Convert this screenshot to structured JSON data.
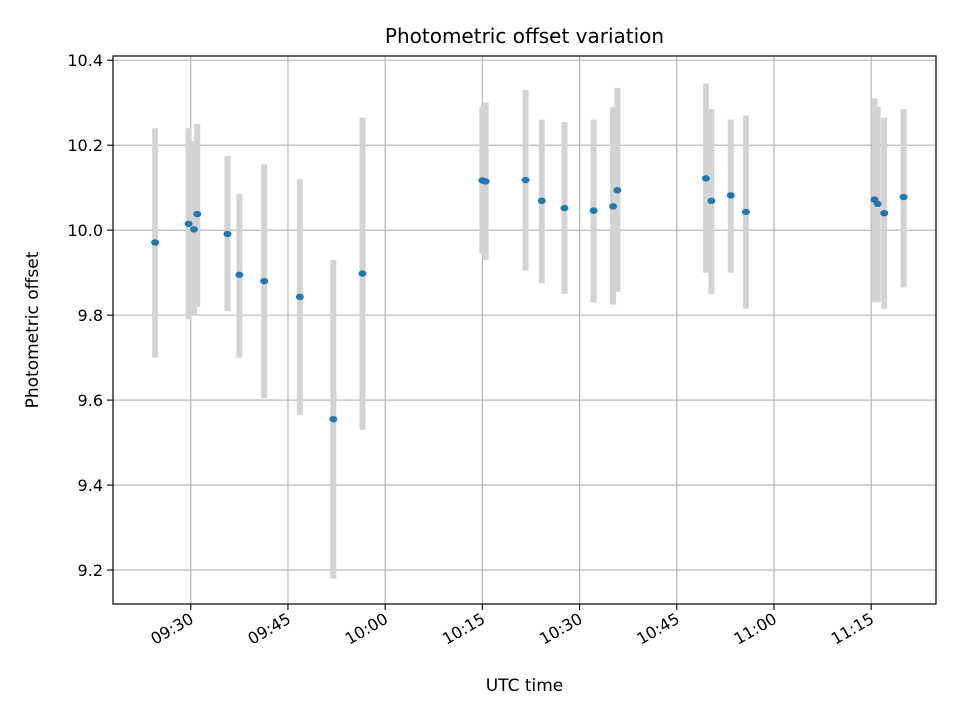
{
  "chart_data": {
    "type": "scatter",
    "title": "Photometric offset variation",
    "xlabel": "UTC time",
    "ylabel": "Photometric offset",
    "xlim": [
      "09:18",
      "11:25"
    ],
    "ylim": [
      9.12,
      10.41
    ],
    "x_ticks": [
      "09:30",
      "09:45",
      "10:00",
      "10:15",
      "10:30",
      "10:45",
      "11:00",
      "11:15"
    ],
    "y_ticks": [
      "9.2",
      "9.4",
      "9.6",
      "9.8",
      "10.0",
      "10.2",
      "10.4"
    ],
    "grid": true,
    "point_color": "#1f77b4",
    "errorbar_color": "#d3d3d3",
    "points": [
      {
        "t": "09:24:30",
        "y": 9.971,
        "lo": 9.7,
        "hi": 10.24
      },
      {
        "t": "09:29:40",
        "y": 10.015,
        "lo": 9.79,
        "hi": 10.24
      },
      {
        "t": "09:30:30",
        "y": 10.002,
        "lo": 9.8,
        "hi": 10.21
      },
      {
        "t": "09:31:00",
        "y": 10.038,
        "lo": 9.82,
        "hi": 10.25
      },
      {
        "t": "09:35:40",
        "y": 9.991,
        "lo": 9.81,
        "hi": 10.175
      },
      {
        "t": "09:37:30",
        "y": 9.895,
        "lo": 9.7,
        "hi": 10.085
      },
      {
        "t": "09:41:20",
        "y": 9.88,
        "lo": 9.605,
        "hi": 10.155
      },
      {
        "t": "09:46:50",
        "y": 9.843,
        "lo": 9.565,
        "hi": 10.12
      },
      {
        "t": "09:52:00",
        "y": 9.555,
        "lo": 9.18,
        "hi": 9.93
      },
      {
        "t": "09:56:30",
        "y": 9.898,
        "lo": 9.53,
        "hi": 10.265
      },
      {
        "t": "10:15:00",
        "y": 10.117,
        "lo": 9.945,
        "hi": 10.29
      },
      {
        "t": "10:15:30",
        "y": 10.115,
        "lo": 9.93,
        "hi": 10.3
      },
      {
        "t": "10:21:40",
        "y": 10.118,
        "lo": 9.905,
        "hi": 10.33
      },
      {
        "t": "10:24:10",
        "y": 10.069,
        "lo": 9.875,
        "hi": 10.26
      },
      {
        "t": "10:27:40",
        "y": 10.052,
        "lo": 9.85,
        "hi": 10.255
      },
      {
        "t": "10:32:10",
        "y": 10.046,
        "lo": 9.83,
        "hi": 10.26
      },
      {
        "t": "10:35:10",
        "y": 10.056,
        "lo": 9.825,
        "hi": 10.29
      },
      {
        "t": "10:35:50",
        "y": 10.094,
        "lo": 9.855,
        "hi": 10.335
      },
      {
        "t": "10:49:30",
        "y": 10.122,
        "lo": 9.9,
        "hi": 10.345
      },
      {
        "t": "10:50:20",
        "y": 10.069,
        "lo": 9.85,
        "hi": 10.285
      },
      {
        "t": "10:53:20",
        "y": 10.082,
        "lo": 9.9,
        "hi": 10.26
      },
      {
        "t": "10:55:40",
        "y": 10.043,
        "lo": 9.815,
        "hi": 10.27
      },
      {
        "t": "11:15:30",
        "y": 10.072,
        "lo": 9.83,
        "hi": 10.31
      },
      {
        "t": "11:16:00",
        "y": 10.062,
        "lo": 9.83,
        "hi": 10.29
      },
      {
        "t": "11:17:00",
        "y": 10.04,
        "lo": 9.815,
        "hi": 10.265
      },
      {
        "t": "11:20:00",
        "y": 10.078,
        "lo": 9.865,
        "hi": 10.285
      }
    ]
  }
}
